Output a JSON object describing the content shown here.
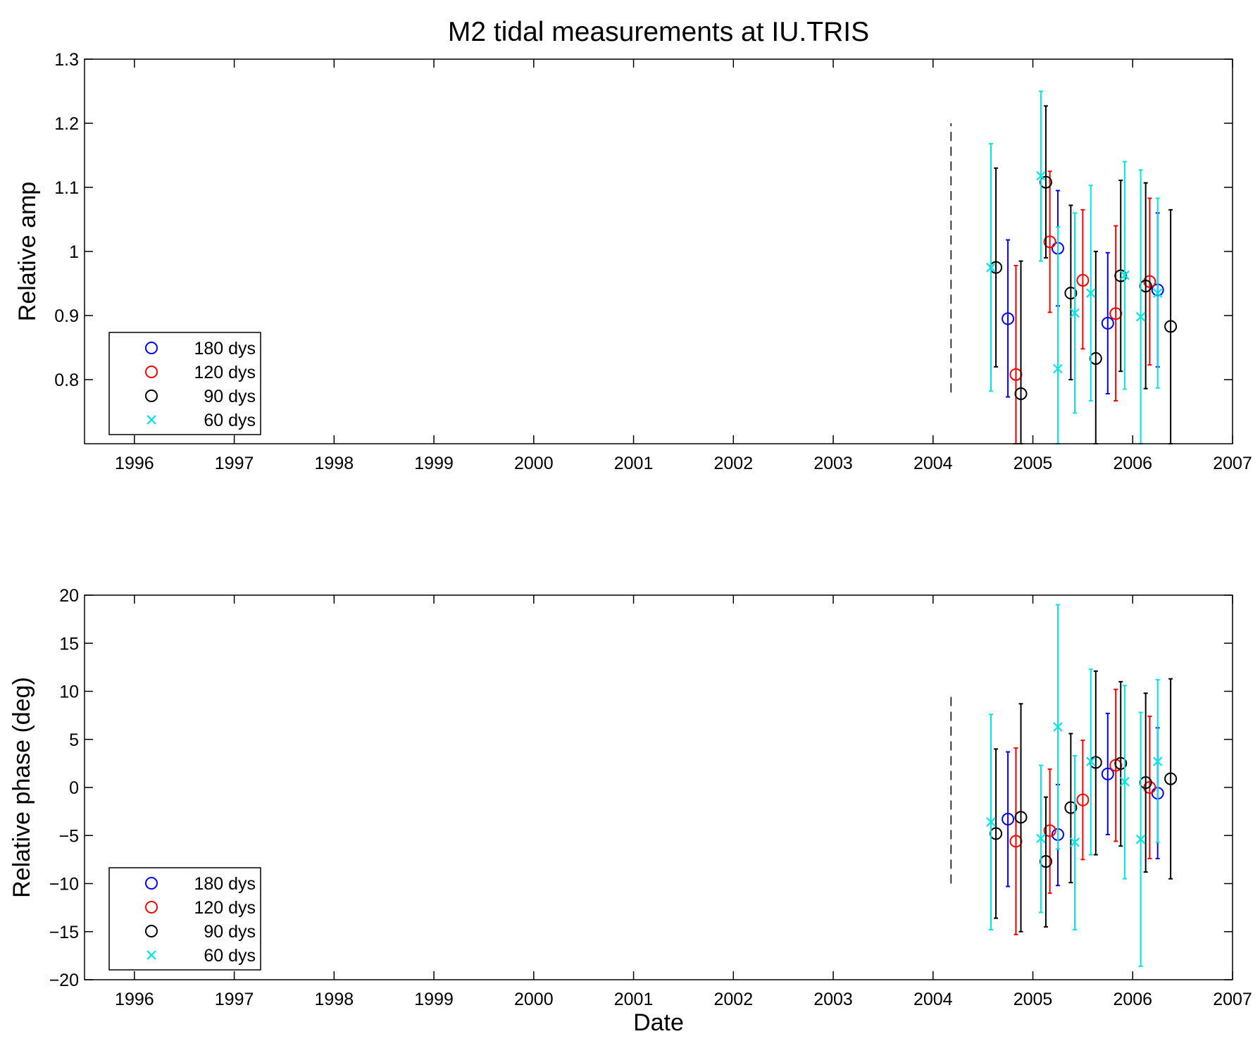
{
  "title": "M2 tidal measurements at IU.TRIS",
  "colors": {
    "180 dys": "#0000ff",
    "120 dys": "#ff0000",
    "90 dys": "#000000",
    "60 dys": "#00e5e5"
  },
  "chart_data": [
    {
      "type": "scatter",
      "title": "M2 tidal measurements at IU.TRIS",
      "ylabel": "Relative amp",
      "xlabel": "",
      "xlim": [
        1995.5,
        2007
      ],
      "ylim": [
        0.7,
        1.3
      ],
      "xticks": [
        "1996",
        "1997",
        "1998",
        "1999",
        "2000",
        "2001",
        "2002",
        "2003",
        "2004",
        "2005",
        "2006",
        "2007"
      ],
      "yticks": [
        "0.8",
        "0.9",
        "1",
        "1.1",
        "1.2",
        "1.3"
      ],
      "grid": false,
      "legend_placement": "bottom-left",
      "marker_line": {
        "x": 2004.18,
        "y": [
          0.78,
          1.2
        ]
      },
      "series": [
        {
          "name": "180 dys",
          "marker": "circle",
          "points": [
            {
              "x": 2004.75,
              "y": 0.895,
              "lo": 0.773,
              "hi": 1.018
            },
            {
              "x": 2005.25,
              "y": 1.005,
              "lo": 0.915,
              "hi": 1.095
            },
            {
              "x": 2005.75,
              "y": 0.888,
              "lo": 0.778,
              "hi": 0.998
            },
            {
              "x": 2006.25,
              "y": 0.94,
              "lo": 0.82,
              "hi": 1.06
            }
          ]
        },
        {
          "name": "120 dys",
          "marker": "circle",
          "points": [
            {
              "x": 2004.83,
              "y": 0.808,
              "lo": 0.7,
              "hi": 0.978
            },
            {
              "x": 2005.17,
              "y": 1.015,
              "lo": 0.905,
              "hi": 1.125
            },
            {
              "x": 2005.5,
              "y": 0.955,
              "lo": 0.848,
              "hi": 1.065
            },
            {
              "x": 2005.83,
              "y": 0.903,
              "lo": 0.767,
              "hi": 1.04
            },
            {
              "x": 2006.17,
              "y": 0.953,
              "lo": 0.823,
              "hi": 1.083
            }
          ]
        },
        {
          "name": "90 dys",
          "marker": "circle",
          "points": [
            {
              "x": 2004.63,
              "y": 0.975,
              "lo": 0.82,
              "hi": 1.13
            },
            {
              "x": 2004.88,
              "y": 0.778,
              "lo": 0.7,
              "hi": 0.985
            },
            {
              "x": 2005.13,
              "y": 1.108,
              "lo": 0.99,
              "hi": 1.227
            },
            {
              "x": 2005.38,
              "y": 0.935,
              "lo": 0.8,
              "hi": 1.072
            },
            {
              "x": 2005.63,
              "y": 0.833,
              "lo": 0.7,
              "hi": 1.0
            },
            {
              "x": 2005.88,
              "y": 0.962,
              "lo": 0.813,
              "hi": 1.111
            },
            {
              "x": 2006.13,
              "y": 0.946,
              "lo": 0.786,
              "hi": 1.107
            },
            {
              "x": 2006.38,
              "y": 0.883,
              "lo": 0.7,
              "hi": 1.065
            }
          ]
        },
        {
          "name": "60 dys",
          "marker": "x",
          "points": [
            {
              "x": 2004.58,
              "y": 0.975,
              "lo": 0.782,
              "hi": 1.168
            },
            {
              "x": 2005.08,
              "y": 1.118,
              "lo": 0.985,
              "hi": 1.25
            },
            {
              "x": 2005.25,
              "y": 0.817,
              "lo": 0.7,
              "hi": 1.038
            },
            {
              "x": 2005.42,
              "y": 0.904,
              "lo": 0.748,
              "hi": 1.06
            },
            {
              "x": 2005.58,
              "y": 0.935,
              "lo": 0.767,
              "hi": 1.103
            },
            {
              "x": 2005.92,
              "y": 0.963,
              "lo": 0.785,
              "hi": 1.14
            },
            {
              "x": 2006.08,
              "y": 0.898,
              "lo": 0.7,
              "hi": 1.127
            },
            {
              "x": 2006.25,
              "y": 0.935,
              "lo": 0.787,
              "hi": 1.083
            }
          ]
        }
      ]
    },
    {
      "type": "scatter",
      "title": "",
      "ylabel": "Relative phase (deg)",
      "xlabel": "Date",
      "xlim": [
        1995.5,
        2007
      ],
      "ylim": [
        -20,
        20
      ],
      "xticks": [
        "1996",
        "1997",
        "1998",
        "1999",
        "2000",
        "2001",
        "2002",
        "2003",
        "2004",
        "2005",
        "2006",
        "2007"
      ],
      "yticks": [
        "−20",
        "−15",
        "−10",
        "−5",
        "0",
        "5",
        "10",
        "15",
        "20"
      ],
      "grid": false,
      "legend_placement": "bottom-left",
      "marker_line": {
        "x": 2004.18,
        "y": [
          -10,
          10
        ]
      },
      "series": [
        {
          "name": "180 dys",
          "marker": "circle",
          "points": [
            {
              "x": 2004.75,
              "y": -3.3,
              "lo": -10.3,
              "hi": 3.7
            },
            {
              "x": 2005.25,
              "y": -4.9,
              "lo": -10.2,
              "hi": 0.3
            },
            {
              "x": 2005.75,
              "y": 1.4,
              "lo": -4.9,
              "hi": 7.7
            },
            {
              "x": 2006.25,
              "y": -0.6,
              "lo": -7.4,
              "hi": 6.2
            }
          ]
        },
        {
          "name": "120 dys",
          "marker": "circle",
          "points": [
            {
              "x": 2004.83,
              "y": -5.6,
              "lo": -15.3,
              "hi": 4.1
            },
            {
              "x": 2005.17,
              "y": -4.5,
              "lo": -11.0,
              "hi": 1.9
            },
            {
              "x": 2005.5,
              "y": -1.3,
              "lo": -7.5,
              "hi": 4.9
            },
            {
              "x": 2005.83,
              "y": 2.3,
              "lo": -5.6,
              "hi": 10.2
            },
            {
              "x": 2006.17,
              "y": 0.0,
              "lo": -7.4,
              "hi": 7.4
            }
          ]
        },
        {
          "name": "90 dys",
          "marker": "circle",
          "points": [
            {
              "x": 2004.63,
              "y": -4.8,
              "lo": -13.6,
              "hi": 4.0
            },
            {
              "x": 2004.88,
              "y": -3.1,
              "lo": -15.0,
              "hi": 8.7
            },
            {
              "x": 2005.13,
              "y": -7.7,
              "lo": -14.5,
              "hi": -1.0
            },
            {
              "x": 2005.38,
              "y": -2.1,
              "lo": -9.9,
              "hi": 5.6
            },
            {
              "x": 2005.63,
              "y": 2.6,
              "lo": -7.0,
              "hi": 12.1
            },
            {
              "x": 2005.88,
              "y": 2.5,
              "lo": -6.1,
              "hi": 11.0
            },
            {
              "x": 2006.13,
              "y": 0.5,
              "lo": -8.8,
              "hi": 9.8
            },
            {
              "x": 2006.38,
              "y": 0.9,
              "lo": -9.5,
              "hi": 11.3
            }
          ]
        },
        {
          "name": "60 dys",
          "marker": "x",
          "points": [
            {
              "x": 2004.58,
              "y": -3.6,
              "lo": -14.8,
              "hi": 7.6
            },
            {
              "x": 2005.08,
              "y": -5.3,
              "lo": -13.0,
              "hi": 2.3
            },
            {
              "x": 2005.25,
              "y": 6.3,
              "lo": -6.4,
              "hi": 19.0
            },
            {
              "x": 2005.42,
              "y": -5.7,
              "lo": -14.8,
              "hi": 3.3
            },
            {
              "x": 2005.58,
              "y": 2.7,
              "lo": -7.0,
              "hi": 12.3
            },
            {
              "x": 2005.92,
              "y": 0.6,
              "lo": -9.5,
              "hi": 10.6
            },
            {
              "x": 2006.08,
              "y": -5.4,
              "lo": -18.6,
              "hi": 7.8
            },
            {
              "x": 2006.25,
              "y": 2.7,
              "lo": -5.7,
              "hi": 11.2
            }
          ]
        }
      ]
    }
  ]
}
